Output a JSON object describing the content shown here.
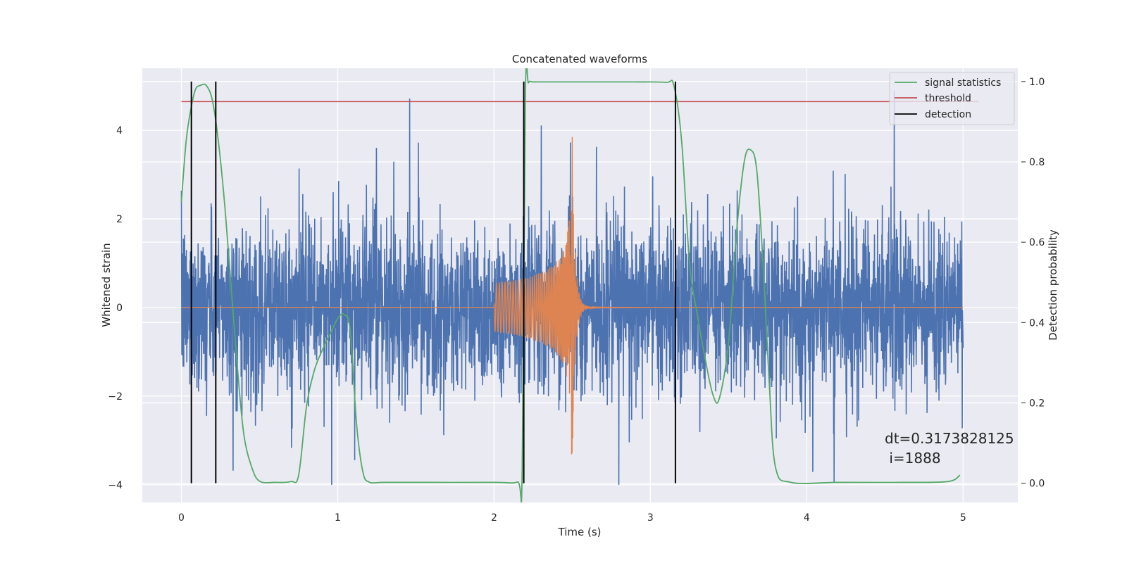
{
  "chart_data": {
    "type": "line",
    "title": "Concatenated waveforms",
    "xlabel": "Time (s)",
    "ylabel": "Whitened strain",
    "y2label": "Detection probability",
    "xlim": [
      -0.25,
      5.35
    ],
    "ylim": [
      -4.4,
      5.4
    ],
    "y2lim": [
      -0.048,
      1.033
    ],
    "xticks": [
      0,
      1,
      2,
      3,
      4,
      5
    ],
    "yticks": [
      -4,
      -2,
      0,
      2,
      4
    ],
    "y2ticks": [
      0.0,
      0.2,
      0.4,
      0.6,
      0.8,
      1.0
    ],
    "ytick_labels": [
      "−4",
      "−2",
      "0",
      "2",
      "4"
    ],
    "y2tick_labels": [
      "0.0",
      "0.2",
      "0.4",
      "0.6",
      "0.8",
      "1.0"
    ],
    "xtick_labels": [
      "0",
      "1",
      "2",
      "3",
      "4",
      "5"
    ],
    "grid": true,
    "colors": {
      "background": "#eaeaf2",
      "grid": "#ffffff",
      "strain": "#4c72b0",
      "template": "#dd8452",
      "signal_statistics": "#55a868",
      "threshold": "#c44e52",
      "detection": "#000000"
    },
    "strain_noise": {
      "x_range": [
        0,
        5
      ],
      "typical_amplitude": 1.0,
      "max": 4.9,
      "min": -4.0
    },
    "template": {
      "x_range": [
        0,
        5
      ],
      "chirp_start": 2.0,
      "merger_time": 2.5,
      "merger_peak": 3.85,
      "merger_trough": -2.95,
      "ringdown_end": 3.0
    },
    "series": [
      {
        "name": "signal statistics",
        "axis": "right",
        "x": [
          0.0,
          0.03,
          0.06,
          0.09,
          0.12,
          0.16,
          0.2,
          0.24,
          0.28,
          0.32,
          0.36,
          0.4,
          0.45,
          0.5,
          0.6,
          0.7,
          0.75,
          0.8,
          0.85,
          0.9,
          0.95,
          1.0,
          1.04,
          1.08,
          1.12,
          1.16,
          1.2,
          1.3,
          1.6,
          2.0,
          2.15,
          2.18,
          2.2,
          2.22,
          2.25,
          2.3,
          2.6,
          2.9,
          3.1,
          3.15,
          3.2,
          3.25,
          3.3,
          3.35,
          3.4,
          3.44,
          3.5,
          3.55,
          3.6,
          3.64,
          3.68,
          3.72,
          3.76,
          3.8,
          3.9,
          4.2,
          4.6,
          4.9,
          4.98
        ],
        "y": [
          0.7,
          0.85,
          0.93,
          0.98,
          0.99,
          0.99,
          0.95,
          0.84,
          0.68,
          0.48,
          0.28,
          0.12,
          0.04,
          0.005,
          0.002,
          0.004,
          0.02,
          0.19,
          0.28,
          0.33,
          0.37,
          0.41,
          0.42,
          0.38,
          0.15,
          0.03,
          0.003,
          0.002,
          0.002,
          0.002,
          0.003,
          0.03,
          0.96,
          0.997,
          0.999,
          0.999,
          0.999,
          0.999,
          0.998,
          0.99,
          0.85,
          0.55,
          0.42,
          0.31,
          0.22,
          0.21,
          0.35,
          0.62,
          0.8,
          0.83,
          0.78,
          0.55,
          0.25,
          0.04,
          0.002,
          0.002,
          0.002,
          0.004,
          0.02
        ]
      },
      {
        "name": "threshold",
        "axis": "right",
        "x": [
          0,
          5.1
        ],
        "y": [
          0.95,
          0.95
        ]
      },
      {
        "name": "detection",
        "axis": "right",
        "x_positions": [
          0.064,
          0.22,
          2.19,
          3.16
        ],
        "y_range": [
          0.0,
          1.0
        ]
      }
    ],
    "legend": {
      "position": "top-right",
      "entries": [
        "signal statistics",
        "threshold",
        "detection"
      ]
    },
    "annotations": [
      {
        "text": "dt=0.3173828125",
        "x": 4.5,
        "y": -3.0
      },
      {
        "text": " i=1888",
        "x": 4.5,
        "y": -3.45
      }
    ]
  }
}
